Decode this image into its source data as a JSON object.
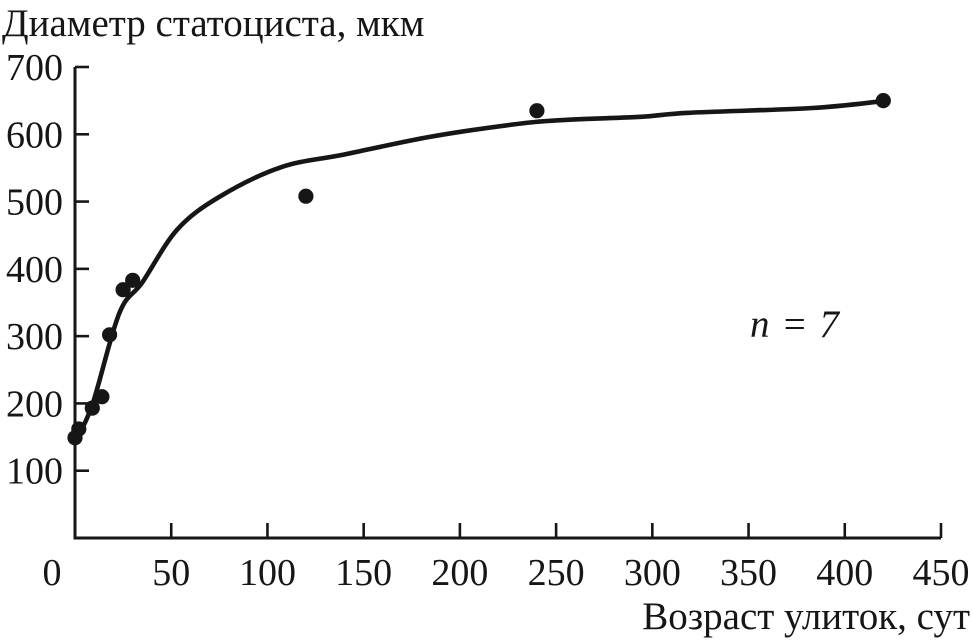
{
  "chart_data": {
    "type": "scatter",
    "title": "Диаметр статоциста, мкм",
    "xlabel": "Возраст улиток, сут",
    "annotation": "n = 7",
    "xlim": [
      0,
      450
    ],
    "ylim": [
      0,
      700
    ],
    "x_ticks": [
      0,
      50,
      100,
      150,
      200,
      250,
      300,
      350,
      400,
      450
    ],
    "y_ticks": [
      100,
      200,
      300,
      400,
      500,
      600,
      700
    ],
    "grid": false,
    "legend": false,
    "points": [
      [
        0,
        149
      ],
      [
        2,
        162
      ],
      [
        9,
        193
      ],
      [
        14,
        210
      ],
      [
        18,
        302
      ],
      [
        25,
        369
      ],
      [
        30,
        383
      ],
      [
        120,
        508
      ],
      [
        240,
        635
      ],
      [
        420,
        650
      ]
    ],
    "fit_curve": [
      [
        0,
        143
      ],
      [
        9,
        198
      ],
      [
        23,
        334
      ],
      [
        35,
        380
      ],
      [
        53,
        458
      ],
      [
        75,
        507
      ],
      [
        107,
        551
      ],
      [
        140,
        570
      ],
      [
        184,
        596
      ],
      [
        226,
        614
      ],
      [
        252,
        621
      ],
      [
        294,
        626
      ],
      [
        319,
        632
      ],
      [
        383,
        639
      ],
      [
        419,
        649
      ]
    ],
    "colors": {
      "ink": "#161616",
      "background": "#ffffff"
    }
  }
}
